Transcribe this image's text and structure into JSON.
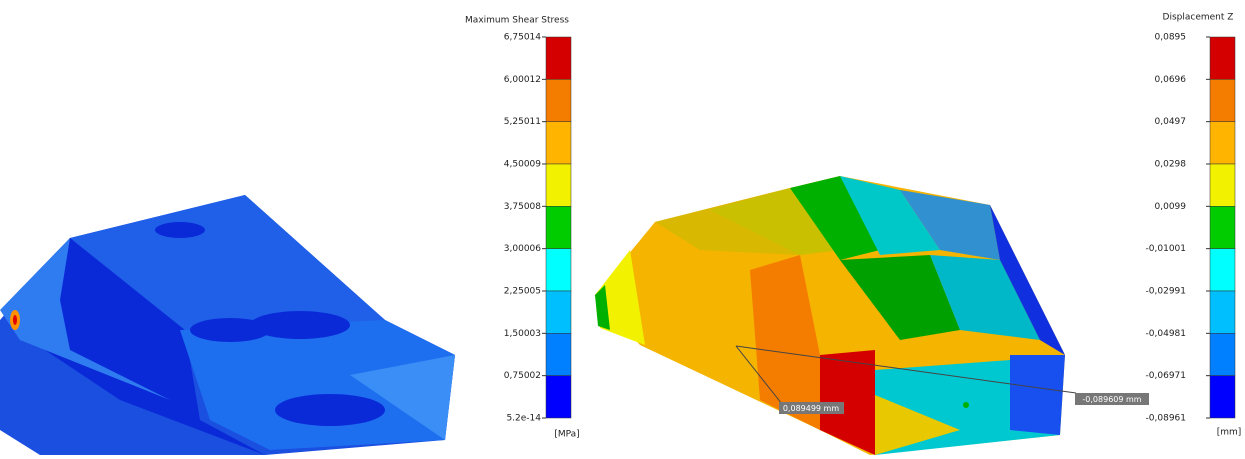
{
  "left_legend": {
    "title": "Maximum Shear Stress",
    "labels": [
      "6,75014",
      "6,00012",
      "5,25011",
      "4,50009",
      "3,75008",
      "3,00006",
      "2,25005",
      "1,50003",
      "0,75002",
      "5.2e-14"
    ],
    "unit": "[MPa]"
  },
  "right_legend": {
    "title": "Displacement Z",
    "labels": [
      "0,0895",
      "0,0696",
      "0,0497",
      "0,0298",
      "0,0099",
      "-0,01001",
      "-0,02991",
      "-0,04981",
      "-0,06971",
      "-0,08961"
    ],
    "unit": "[mm]"
  },
  "legend_colors": [
    "#d40000",
    "#f47d00",
    "#ffb400",
    "#f2f200",
    "#00cc00",
    "#00ffff",
    "#00bfff",
    "#0080ff",
    "#0000ff"
  ],
  "callouts": [
    "0,089499 mm",
    "-0,089609 mm"
  ]
}
